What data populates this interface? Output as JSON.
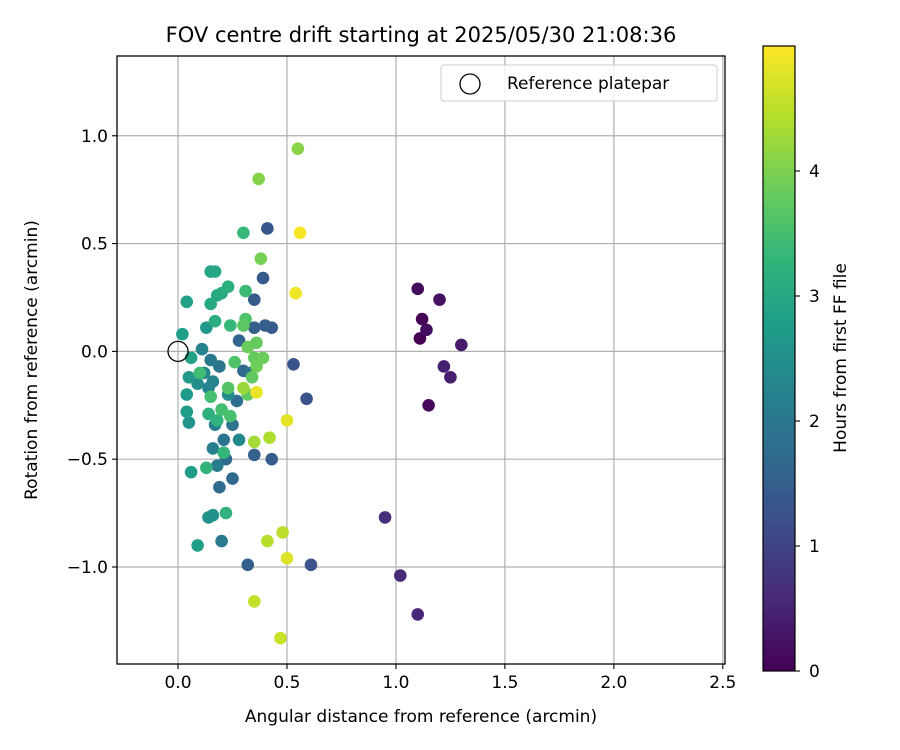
{
  "chart_data": {
    "type": "scatter",
    "title": "FOV centre drift starting at 2025/05/30 21:08:36",
    "xlabel": "Angular distance from reference (arcmin)",
    "ylabel": "Rotation from reference (arcmin)",
    "xlim": [
      -0.28,
      2.51
    ],
    "ylim": [
      -1.45,
      1.37
    ],
    "xticks": [
      0.0,
      0.5,
      1.0,
      1.5,
      2.0,
      2.5
    ],
    "xtick_labels": [
      "0.0",
      "0.5",
      "1.0",
      "1.5",
      "2.0",
      "2.5"
    ],
    "yticks": [
      -1.0,
      -0.5,
      0.0,
      0.5,
      1.0
    ],
    "ytick_labels": [
      "−1.0",
      "−0.5",
      "0.0",
      "0.5",
      "1.0"
    ],
    "grid": true,
    "legend": {
      "position": "top-right",
      "entries": [
        "Reference platepar"
      ]
    },
    "reference_point": {
      "x": 0.0,
      "y": 0.0,
      "label": "Reference platepar"
    },
    "colorbar": {
      "label": "Hours from first FF file",
      "range": [
        0,
        5.0
      ],
      "ticks": [
        0,
        1,
        2,
        3,
        4
      ],
      "tick_labels": [
        "0",
        "1",
        "2",
        "3",
        "4"
      ],
      "colormap": "viridis"
    },
    "points": [
      {
        "x": 1.11,
        "y": 0.06,
        "h": 0.0
      },
      {
        "x": 1.12,
        "y": 0.15,
        "h": 0.05
      },
      {
        "x": 1.15,
        "y": -0.25,
        "h": 0.1
      },
      {
        "x": 1.1,
        "y": 0.29,
        "h": 0.15
      },
      {
        "x": 1.14,
        "y": 0.1,
        "h": 0.2
      },
      {
        "x": 1.2,
        "y": 0.24,
        "h": 0.25
      },
      {
        "x": 1.3,
        "y": 0.03,
        "h": 0.35
      },
      {
        "x": 1.25,
        "y": -0.12,
        "h": 0.4
      },
      {
        "x": 1.22,
        "y": -0.07,
        "h": 0.45
      },
      {
        "x": 1.1,
        "y": -1.22,
        "h": 0.55
      },
      {
        "x": 1.02,
        "y": -1.04,
        "h": 0.6
      },
      {
        "x": 0.95,
        "y": -0.77,
        "h": 0.65
      },
      {
        "x": 0.61,
        "y": -0.99,
        "h": 1.25
      },
      {
        "x": 0.59,
        "y": -0.22,
        "h": 1.3
      },
      {
        "x": 0.53,
        "y": -0.06,
        "h": 1.3
      },
      {
        "x": 0.41,
        "y": 0.57,
        "h": 1.35
      },
      {
        "x": 0.43,
        "y": 0.11,
        "h": 1.4
      },
      {
        "x": 0.39,
        "y": 0.34,
        "h": 1.4
      },
      {
        "x": 0.35,
        "y": 0.24,
        "h": 1.45
      },
      {
        "x": 0.43,
        "y": -0.5,
        "h": 1.45
      },
      {
        "x": 0.32,
        "y": -0.99,
        "h": 1.5
      },
      {
        "x": 0.4,
        "y": 0.12,
        "h": 1.5
      },
      {
        "x": 0.35,
        "y": 0.11,
        "h": 1.5
      },
      {
        "x": 0.35,
        "y": -0.48,
        "h": 1.55
      },
      {
        "x": 0.28,
        "y": 0.05,
        "h": 1.6
      },
      {
        "x": 0.3,
        "y": -0.09,
        "h": 1.65
      },
      {
        "x": 0.25,
        "y": -0.59,
        "h": 1.7
      },
      {
        "x": 0.22,
        "y": -0.5,
        "h": 1.75
      },
      {
        "x": 0.19,
        "y": -0.63,
        "h": 1.75
      },
      {
        "x": 0.27,
        "y": -0.23,
        "h": 1.8
      },
      {
        "x": 0.33,
        "y": -0.1,
        "h": 1.85
      },
      {
        "x": 0.25,
        "y": -0.34,
        "h": 1.9
      },
      {
        "x": 0.21,
        "y": -0.41,
        "h": 1.95
      },
      {
        "x": 0.19,
        "y": -0.07,
        "h": 1.95
      },
      {
        "x": 0.15,
        "y": -0.04,
        "h": 2.0
      },
      {
        "x": 0.2,
        "y": -0.88,
        "h": 2.05
      },
      {
        "x": 0.18,
        "y": -0.53,
        "h": 2.1
      },
      {
        "x": 0.16,
        "y": -0.45,
        "h": 2.15
      },
      {
        "x": 0.17,
        "y": -0.34,
        "h": 2.15
      },
      {
        "x": 0.14,
        "y": -0.17,
        "h": 2.2
      },
      {
        "x": 0.11,
        "y": 0.01,
        "h": 2.2
      },
      {
        "x": 0.16,
        "y": -0.14,
        "h": 2.25
      },
      {
        "x": 0.12,
        "y": -0.1,
        "h": 2.3
      },
      {
        "x": 0.28,
        "y": -0.41,
        "h": 2.35
      },
      {
        "x": 0.23,
        "y": -0.2,
        "h": 2.4
      },
      {
        "x": 0.09,
        "y": -0.15,
        "h": 2.45
      },
      {
        "x": 0.14,
        "y": -0.77,
        "h": 2.5
      },
      {
        "x": 0.16,
        "y": -0.76,
        "h": 2.55
      },
      {
        "x": 0.05,
        "y": -0.33,
        "h": 2.6
      },
      {
        "x": 0.05,
        "y": -0.12,
        "h": 2.65
      },
      {
        "x": 0.13,
        "y": 0.11,
        "h": 2.65
      },
      {
        "x": 0.04,
        "y": -0.2,
        "h": 2.7
      },
      {
        "x": 0.04,
        "y": -0.28,
        "h": 2.75
      },
      {
        "x": 0.06,
        "y": -0.56,
        "h": 2.75
      },
      {
        "x": 0.09,
        "y": -0.9,
        "h": 2.8
      },
      {
        "x": 0.02,
        "y": 0.08,
        "h": 2.8
      },
      {
        "x": 0.04,
        "y": 0.23,
        "h": 2.85
      },
      {
        "x": 0.06,
        "y": -0.03,
        "h": 2.85
      },
      {
        "x": 0.15,
        "y": 0.37,
        "h": 2.9
      },
      {
        "x": 0.17,
        "y": 0.37,
        "h": 2.95
      },
      {
        "x": 0.15,
        "y": 0.22,
        "h": 3.0
      },
      {
        "x": 0.18,
        "y": 0.26,
        "h": 3.0
      },
      {
        "x": 0.2,
        "y": 0.27,
        "h": 3.05
      },
      {
        "x": 0.17,
        "y": 0.14,
        "h": 3.1
      },
      {
        "x": 0.23,
        "y": 0.3,
        "h": 3.15
      },
      {
        "x": 0.14,
        "y": -0.29,
        "h": 3.15
      },
      {
        "x": 0.18,
        "y": -0.32,
        "h": 3.2
      },
      {
        "x": 0.22,
        "y": -0.75,
        "h": 3.2
      },
      {
        "x": 0.13,
        "y": -0.54,
        "h": 3.25
      },
      {
        "x": 0.21,
        "y": -0.47,
        "h": 3.3
      },
      {
        "x": 0.24,
        "y": 0.12,
        "h": 3.35
      },
      {
        "x": 0.3,
        "y": 0.55,
        "h": 3.35
      },
      {
        "x": 0.31,
        "y": 0.28,
        "h": 3.4
      },
      {
        "x": 0.1,
        "y": -0.1,
        "h": 3.45
      },
      {
        "x": 0.15,
        "y": -0.21,
        "h": 3.5
      },
      {
        "x": 0.2,
        "y": -0.27,
        "h": 3.5
      },
      {
        "x": 0.24,
        "y": -0.3,
        "h": 3.55
      },
      {
        "x": 0.26,
        "y": -0.05,
        "h": 3.6
      },
      {
        "x": 0.31,
        "y": 0.15,
        "h": 3.6
      },
      {
        "x": 0.23,
        "y": -0.17,
        "h": 3.65
      },
      {
        "x": 0.3,
        "y": 0.12,
        "h": 3.7
      },
      {
        "x": 0.32,
        "y": -0.2,
        "h": 3.75
      },
      {
        "x": 0.34,
        "y": -0.12,
        "h": 3.75
      },
      {
        "x": 0.35,
        "y": -0.03,
        "h": 3.8
      },
      {
        "x": 0.36,
        "y": 0.04,
        "h": 3.8
      },
      {
        "x": 0.39,
        "y": -0.03,
        "h": 3.85
      },
      {
        "x": 0.32,
        "y": 0.02,
        "h": 3.85
      },
      {
        "x": 0.36,
        "y": -0.07,
        "h": 3.9
      },
      {
        "x": 0.38,
        "y": 0.43,
        "h": 3.95
      },
      {
        "x": 0.37,
        "y": 0.8,
        "h": 4.05
      },
      {
        "x": 0.55,
        "y": 0.94,
        "h": 4.1
      },
      {
        "x": 0.3,
        "y": -0.17,
        "h": 4.25
      },
      {
        "x": 0.35,
        "y": -0.42,
        "h": 4.3
      },
      {
        "x": 0.42,
        "y": -0.4,
        "h": 4.4
      },
      {
        "x": 0.41,
        "y": -0.88,
        "h": 4.45
      },
      {
        "x": 0.48,
        "y": -0.84,
        "h": 4.5
      },
      {
        "x": 0.35,
        "y": -1.16,
        "h": 4.55
      },
      {
        "x": 0.47,
        "y": -1.33,
        "h": 4.6
      },
      {
        "x": 0.5,
        "y": -0.96,
        "h": 4.75
      },
      {
        "x": 0.5,
        "y": -0.32,
        "h": 4.8
      },
      {
        "x": 0.36,
        "y": -0.19,
        "h": 4.85
      },
      {
        "x": 0.54,
        "y": 0.27,
        "h": 4.9
      },
      {
        "x": 0.56,
        "y": 0.55,
        "h": 4.95
      }
    ]
  }
}
